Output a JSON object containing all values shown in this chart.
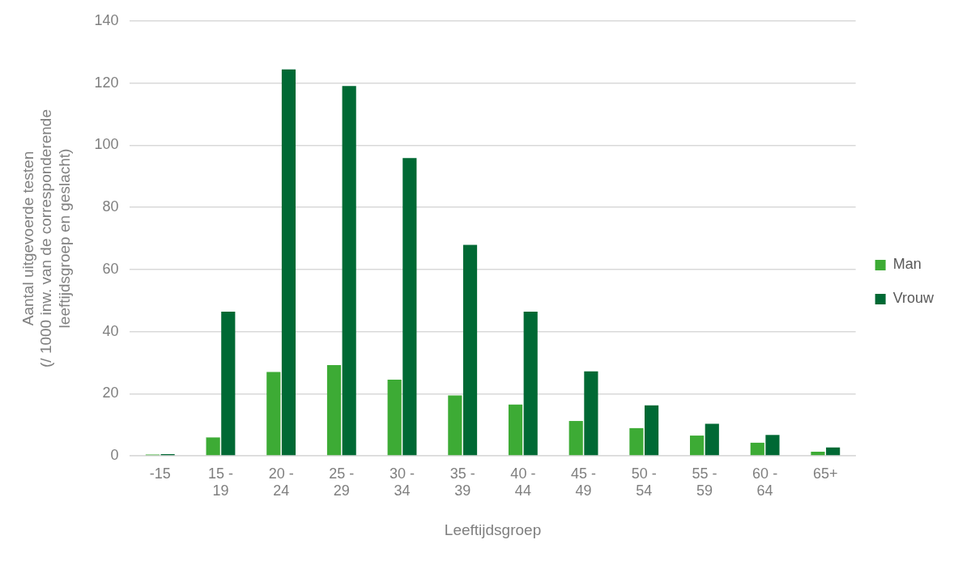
{
  "chart_data": {
    "type": "bar",
    "xlabel": "Leeftijdsgroep",
    "ylabel": "Aantal uitgevoerde testen (/ 1000 inw. van de corresponderende leeftijdsgroep en geslacht)",
    "categories": [
      "-15",
      "15 - 19",
      "20 - 24",
      "25 - 29",
      "30 - 34",
      "35 - 39",
      "40 - 44",
      "45 - 49",
      "50 - 54",
      "55 - 59",
      "60 - 64",
      "65+"
    ],
    "series": [
      {
        "name": "Man",
        "color": "#3dab35",
        "values": [
          0.4,
          5.9,
          27.0,
          29.2,
          24.5,
          19.4,
          16.5,
          11.2,
          8.9,
          6.5,
          4.2,
          1.3
        ]
      },
      {
        "name": "Vrouw",
        "color": "#006934",
        "values": [
          0.5,
          46.4,
          124.4,
          119.1,
          95.9,
          67.9,
          46.4,
          27.2,
          16.2,
          10.3,
          6.7,
          2.7
        ]
      }
    ],
    "ylim": [
      0,
      140
    ],
    "yticks": [
      0,
      20,
      40,
      60,
      80,
      100,
      120,
      140
    ],
    "grid": "y",
    "legend": "right"
  }
}
